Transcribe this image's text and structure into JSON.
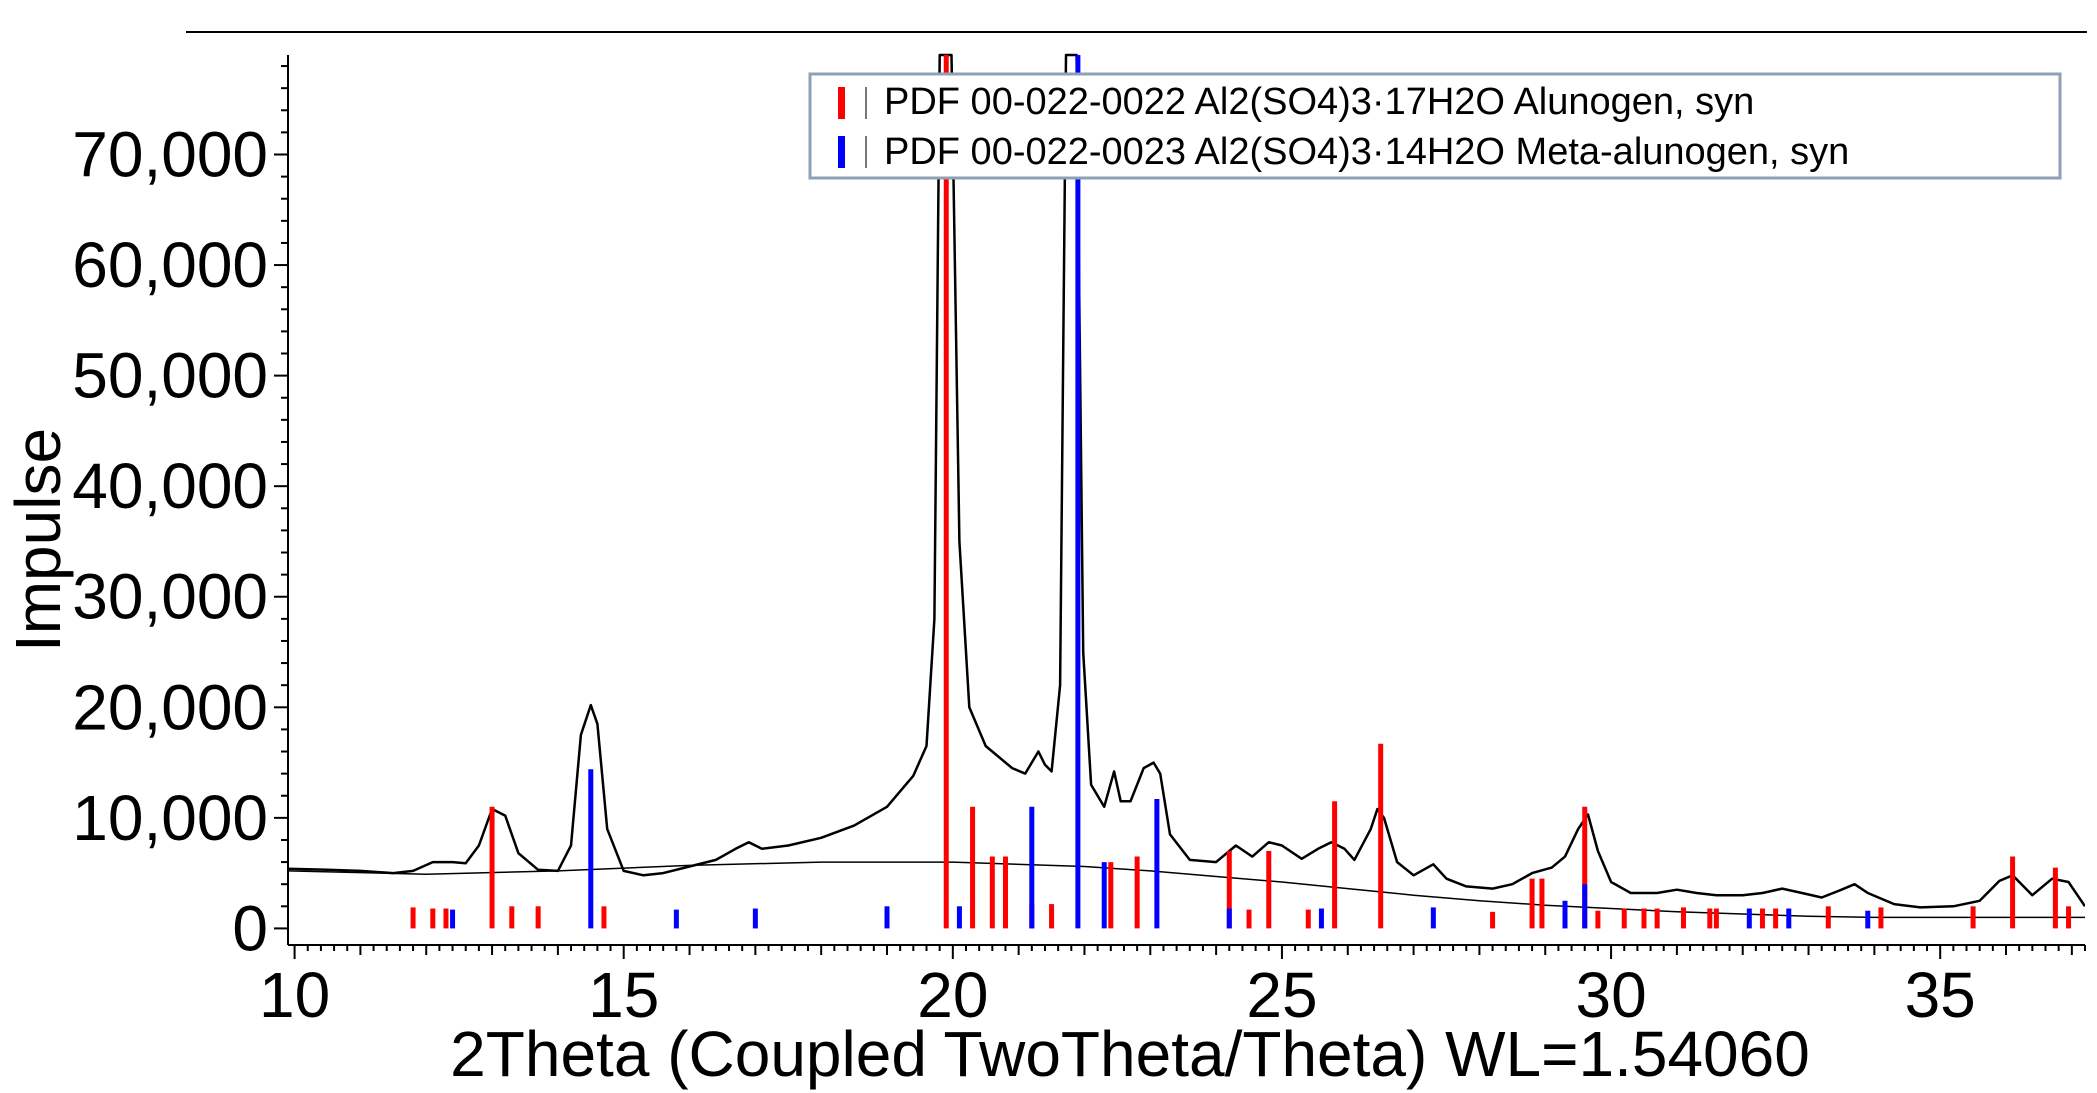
{
  "chart_data": {
    "type": "line",
    "xlabel": "2Theta (Coupled TwoTheta/Theta) WL=1.54060",
    "ylabel": "Impulse",
    "xlim": [
      9.9,
      37.2
    ],
    "ylim": [
      -1500,
      79000
    ],
    "x_ticks": [
      10,
      15,
      20,
      25,
      30,
      35
    ],
    "y_ticks": [
      0,
      10000,
      20000,
      30000,
      40000,
      50000,
      60000,
      70000
    ],
    "y_tick_labels": [
      "0",
      "10,000",
      "20,000",
      "30,000",
      "40,000",
      "50,000",
      "60,000",
      "70,000"
    ],
    "series": [
      {
        "type": "line",
        "color": "#000000",
        "points": [
          [
            9.9,
            5400
          ],
          [
            10.5,
            5300
          ],
          [
            11.0,
            5200
          ],
          [
            11.5,
            5000
          ],
          [
            11.8,
            5200
          ],
          [
            12.1,
            6000
          ],
          [
            12.4,
            6000
          ],
          [
            12.6,
            5900
          ],
          [
            12.8,
            7500
          ],
          [
            13.0,
            10800
          ],
          [
            13.2,
            10200
          ],
          [
            13.4,
            6800
          ],
          [
            13.7,
            5300
          ],
          [
            14.0,
            5200
          ],
          [
            14.2,
            7500
          ],
          [
            14.35,
            17500
          ],
          [
            14.5,
            20200
          ],
          [
            14.6,
            18500
          ],
          [
            14.75,
            9000
          ],
          [
            15.0,
            5200
          ],
          [
            15.3,
            4800
          ],
          [
            15.6,
            5000
          ],
          [
            16.0,
            5600
          ],
          [
            16.4,
            6200
          ],
          [
            16.7,
            7200
          ],
          [
            16.9,
            7800
          ],
          [
            17.1,
            7200
          ],
          [
            17.5,
            7500
          ],
          [
            18.0,
            8200
          ],
          [
            18.5,
            9300
          ],
          [
            19.0,
            11000
          ],
          [
            19.4,
            13800
          ],
          [
            19.6,
            16500
          ],
          [
            19.72,
            28000
          ],
          [
            19.8,
            79000
          ],
          [
            19.98,
            79000
          ],
          [
            20.1,
            35000
          ],
          [
            20.25,
            20000
          ],
          [
            20.5,
            16500
          ],
          [
            20.9,
            14500
          ],
          [
            21.1,
            14000
          ],
          [
            21.3,
            16000
          ],
          [
            21.4,
            14800
          ],
          [
            21.5,
            14200
          ],
          [
            21.63,
            22000
          ],
          [
            21.72,
            79000
          ],
          [
            21.88,
            79000
          ],
          [
            21.98,
            25000
          ],
          [
            22.1,
            13000
          ],
          [
            22.3,
            11000
          ],
          [
            22.45,
            14200
          ],
          [
            22.55,
            11500
          ],
          [
            22.7,
            11500
          ],
          [
            22.9,
            14500
          ],
          [
            23.05,
            15000
          ],
          [
            23.15,
            14000
          ],
          [
            23.3,
            8500
          ],
          [
            23.6,
            6200
          ],
          [
            24.0,
            6000
          ],
          [
            24.3,
            7500
          ],
          [
            24.55,
            6500
          ],
          [
            24.8,
            7800
          ],
          [
            25.0,
            7500
          ],
          [
            25.3,
            6300
          ],
          [
            25.55,
            7200
          ],
          [
            25.75,
            7800
          ],
          [
            25.95,
            7200
          ],
          [
            26.1,
            6200
          ],
          [
            26.35,
            9000
          ],
          [
            26.45,
            10800
          ],
          [
            26.55,
            10000
          ],
          [
            26.75,
            6000
          ],
          [
            27.0,
            4800
          ],
          [
            27.3,
            5800
          ],
          [
            27.5,
            4500
          ],
          [
            27.8,
            3800
          ],
          [
            28.2,
            3600
          ],
          [
            28.5,
            4000
          ],
          [
            28.8,
            5000
          ],
          [
            29.1,
            5500
          ],
          [
            29.3,
            6500
          ],
          [
            29.5,
            9000
          ],
          [
            29.65,
            10300
          ],
          [
            29.8,
            7000
          ],
          [
            30.0,
            4200
          ],
          [
            30.3,
            3200
          ],
          [
            30.7,
            3200
          ],
          [
            31.0,
            3500
          ],
          [
            31.3,
            3200
          ],
          [
            31.6,
            3000
          ],
          [
            32.0,
            3000
          ],
          [
            32.3,
            3200
          ],
          [
            32.6,
            3600
          ],
          [
            32.9,
            3200
          ],
          [
            33.2,
            2800
          ],
          [
            33.5,
            3500
          ],
          [
            33.7,
            4000
          ],
          [
            33.9,
            3200
          ],
          [
            34.3,
            2200
          ],
          [
            34.7,
            1900
          ],
          [
            35.2,
            2000
          ],
          [
            35.6,
            2500
          ],
          [
            35.9,
            4300
          ],
          [
            36.1,
            4800
          ],
          [
            36.4,
            3000
          ],
          [
            36.7,
            4500
          ],
          [
            36.95,
            4200
          ],
          [
            37.2,
            2000
          ]
        ]
      },
      {
        "type": "line",
        "color": "#000000",
        "points": [
          [
            9.9,
            5200
          ],
          [
            12.0,
            4900
          ],
          [
            14.0,
            5200
          ],
          [
            16.0,
            5700
          ],
          [
            18.0,
            6000
          ],
          [
            20.0,
            6000
          ],
          [
            22.0,
            5600
          ],
          [
            23.0,
            5200
          ],
          [
            24.0,
            4700
          ],
          [
            25.0,
            4200
          ],
          [
            26.0,
            3600
          ],
          [
            27.0,
            3000
          ],
          [
            28.0,
            2500
          ],
          [
            29.0,
            2100
          ],
          [
            30.0,
            1800
          ],
          [
            31.0,
            1500
          ],
          [
            32.0,
            1300
          ],
          [
            33.0,
            1100
          ],
          [
            34.0,
            1000
          ],
          [
            35.0,
            1000
          ],
          [
            36.0,
            1000
          ],
          [
            37.2,
            1000
          ]
        ]
      }
    ],
    "reference_patterns": [
      {
        "name": "PDF 00-022-0022 Al2(SO4)3·17H2O Alunogen, syn",
        "color": "#ff0000",
        "sticks": [
          [
            11.8,
            1900
          ],
          [
            12.1,
            1800
          ],
          [
            12.3,
            1800
          ],
          [
            13.0,
            11000
          ],
          [
            13.3,
            2000
          ],
          [
            13.7,
            2000
          ],
          [
            14.7,
            2000
          ],
          [
            19.9,
            79000
          ],
          [
            20.3,
            11000
          ],
          [
            20.6,
            6500
          ],
          [
            20.8,
            6500
          ],
          [
            21.2,
            2200
          ],
          [
            21.5,
            2200
          ],
          [
            22.4,
            6000
          ],
          [
            22.8,
            6500
          ],
          [
            24.2,
            7000
          ],
          [
            24.5,
            1700
          ],
          [
            24.8,
            7000
          ],
          [
            25.4,
            1700
          ],
          [
            25.8,
            11500
          ],
          [
            26.5,
            16700
          ],
          [
            28.2,
            1500
          ],
          [
            28.8,
            4500
          ],
          [
            28.95,
            4500
          ],
          [
            29.6,
            11000
          ],
          [
            29.8,
            1600
          ],
          [
            30.2,
            1800
          ],
          [
            30.5,
            1800
          ],
          [
            30.7,
            1800
          ],
          [
            31.1,
            1900
          ],
          [
            31.5,
            1800
          ],
          [
            31.6,
            1800
          ],
          [
            32.3,
            1800
          ],
          [
            32.5,
            1800
          ],
          [
            33.3,
            2000
          ],
          [
            34.1,
            1900
          ],
          [
            35.5,
            2000
          ],
          [
            36.1,
            6500
          ],
          [
            36.75,
            5500
          ],
          [
            36.95,
            2000
          ]
        ]
      },
      {
        "name": "PDF 00-022-0023 Al2(SO4)3·14H2O Meta-alunogen, syn",
        "color": "#0000ff",
        "sticks": [
          [
            12.4,
            1700
          ],
          [
            14.5,
            14400
          ],
          [
            15.8,
            1700
          ],
          [
            17.0,
            1800
          ],
          [
            19.0,
            2000
          ],
          [
            20.1,
            2000
          ],
          [
            21.2,
            11000
          ],
          [
            21.9,
            79000
          ],
          [
            22.3,
            6000
          ],
          [
            23.1,
            11700
          ],
          [
            24.2,
            1800
          ],
          [
            25.6,
            1800
          ],
          [
            27.3,
            1900
          ],
          [
            29.3,
            2500
          ],
          [
            29.6,
            4000
          ],
          [
            32.1,
            1800
          ],
          [
            32.7,
            1800
          ],
          [
            33.9,
            1600
          ]
        ]
      }
    ],
    "legend": {
      "position": "top-right"
    }
  }
}
